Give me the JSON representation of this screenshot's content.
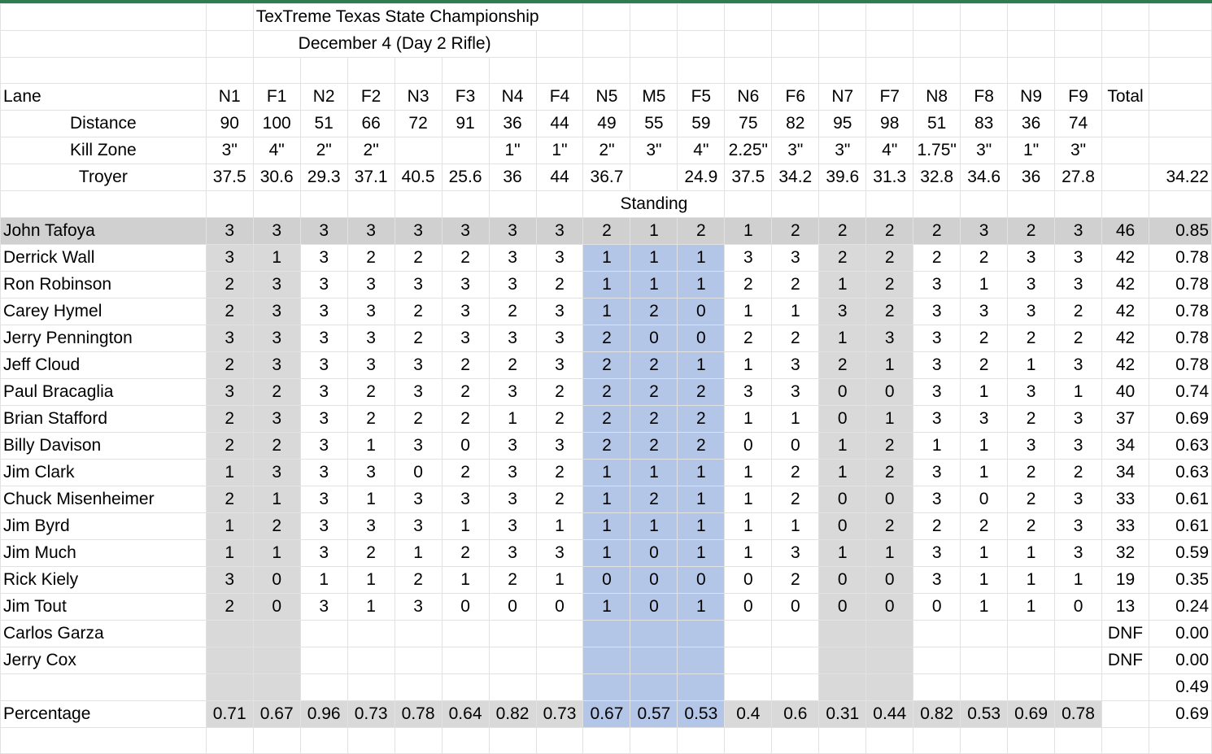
{
  "sheet": {
    "title": "TexTreme Texas State Championship",
    "subtitle": "December 4 (Day 2 Rifle)",
    "standing_label": "Standing",
    "header_row": {
      "label": "Lane",
      "lanes": [
        "N1",
        "F1",
        "N2",
        "F2",
        "N3",
        "F3",
        "N4",
        "F4",
        "N5",
        "M5",
        "F5",
        "N6",
        "F6",
        "N7",
        "F7",
        "N8",
        "F8",
        "N9",
        "F9"
      ],
      "total": "Total"
    },
    "distance_row": {
      "label": "Distance",
      "values": [
        "90",
        "100",
        "51",
        "66",
        "72",
        "91",
        "36",
        "44",
        "49",
        "55",
        "59",
        "75",
        "82",
        "95",
        "98",
        "51",
        "83",
        "36",
        "74"
      ]
    },
    "killzone_row": {
      "label": "Kill Zone",
      "values": [
        "3\"",
        "4\"",
        "2\"",
        "2\"",
        "",
        "",
        "1\"",
        "1\"",
        "2\"",
        "3\"",
        "4\"",
        "2.25\"",
        "3\"",
        "3\"",
        "4\"",
        "1.75\"",
        "3\"",
        "1\"",
        "3\""
      ]
    },
    "troyer_row": {
      "label": "Troyer",
      "values": [
        "37.5",
        "30.6",
        "29.3",
        "37.1",
        "40.5",
        "25.6",
        "36",
        "44",
        "36.7",
        "",
        "24.9",
        "37.5",
        "34.2",
        "39.6",
        "31.3",
        "32.8",
        "34.6",
        "36",
        "27.8"
      ],
      "pct": "34.22"
    },
    "shooters": [
      {
        "name": "John Tafoya",
        "scores": [
          "3",
          "3",
          "3",
          "3",
          "3",
          "3",
          "3",
          "3",
          "2",
          "1",
          "2",
          "1",
          "2",
          "2",
          "2",
          "2",
          "3",
          "2",
          "3"
        ],
        "total": "46",
        "pct": "0.85"
      },
      {
        "name": "Derrick Wall",
        "scores": [
          "3",
          "1",
          "3",
          "2",
          "2",
          "2",
          "3",
          "3",
          "1",
          "1",
          "1",
          "3",
          "3",
          "2",
          "2",
          "2",
          "2",
          "3",
          "3"
        ],
        "total": "42",
        "pct": "0.78"
      },
      {
        "name": "Ron Robinson",
        "scores": [
          "2",
          "3",
          "3",
          "3",
          "3",
          "3",
          "3",
          "2",
          "1",
          "1",
          "1",
          "2",
          "2",
          "1",
          "2",
          "3",
          "1",
          "3",
          "3"
        ],
        "total": "42",
        "pct": "0.78"
      },
      {
        "name": "Carey Hymel",
        "scores": [
          "2",
          "3",
          "3",
          "3",
          "2",
          "3",
          "2",
          "3",
          "1",
          "2",
          "0",
          "1",
          "1",
          "3",
          "2",
          "3",
          "3",
          "3",
          "2"
        ],
        "total": "42",
        "pct": "0.78"
      },
      {
        "name": "Jerry Pennington",
        "scores": [
          "3",
          "3",
          "3",
          "3",
          "2",
          "3",
          "3",
          "3",
          "2",
          "0",
          "0",
          "2",
          "2",
          "1",
          "3",
          "3",
          "2",
          "2",
          "2"
        ],
        "total": "42",
        "pct": "0.78"
      },
      {
        "name": "Jeff Cloud",
        "scores": [
          "2",
          "3",
          "3",
          "3",
          "3",
          "2",
          "2",
          "3",
          "2",
          "2",
          "1",
          "1",
          "3",
          "2",
          "1",
          "3",
          "2",
          "1",
          "3"
        ],
        "total": "42",
        "pct": "0.78"
      },
      {
        "name": "Paul Bracaglia",
        "scores": [
          "3",
          "2",
          "3",
          "2",
          "3",
          "2",
          "3",
          "2",
          "2",
          "2",
          "2",
          "3",
          "3",
          "0",
          "0",
          "3",
          "1",
          "3",
          "1"
        ],
        "total": "40",
        "pct": "0.74"
      },
      {
        "name": "Brian Stafford",
        "scores": [
          "2",
          "3",
          "3",
          "2",
          "2",
          "2",
          "1",
          "2",
          "2",
          "2",
          "2",
          "1",
          "1",
          "0",
          "1",
          "3",
          "3",
          "2",
          "3"
        ],
        "total": "37",
        "pct": "0.69"
      },
      {
        "name": "Billy Davison",
        "scores": [
          "2",
          "2",
          "3",
          "1",
          "3",
          "0",
          "3",
          "3",
          "2",
          "2",
          "2",
          "0",
          "0",
          "1",
          "2",
          "1",
          "1",
          "3",
          "3"
        ],
        "total": "34",
        "pct": "0.63"
      },
      {
        "name": "Jim Clark",
        "scores": [
          "1",
          "3",
          "3",
          "3",
          "0",
          "2",
          "3",
          "2",
          "1",
          "1",
          "1",
          "1",
          "2",
          "1",
          "2",
          "3",
          "1",
          "2",
          "2"
        ],
        "total": "34",
        "pct": "0.63"
      },
      {
        "name": "Chuck Misenheimer",
        "scores": [
          "2",
          "1",
          "3",
          "1",
          "3",
          "3",
          "3",
          "2",
          "1",
          "2",
          "1",
          "1",
          "2",
          "0",
          "0",
          "3",
          "0",
          "2",
          "3"
        ],
        "total": "33",
        "pct": "0.61"
      },
      {
        "name": "Jim Byrd",
        "scores": [
          "1",
          "2",
          "3",
          "3",
          "3",
          "1",
          "3",
          "1",
          "1",
          "1",
          "1",
          "1",
          "1",
          "0",
          "2",
          "2",
          "2",
          "2",
          "3"
        ],
        "total": "33",
        "pct": "0.61"
      },
      {
        "name": "Jim Much",
        "scores": [
          "1",
          "1",
          "3",
          "2",
          "1",
          "2",
          "3",
          "3",
          "1",
          "0",
          "1",
          "1",
          "3",
          "1",
          "1",
          "3",
          "1",
          "1",
          "3"
        ],
        "total": "32",
        "pct": "0.59"
      },
      {
        "name": "Rick Kiely",
        "scores": [
          "3",
          "0",
          "1",
          "1",
          "2",
          "1",
          "2",
          "1",
          "0",
          "0",
          "0",
          "0",
          "2",
          "0",
          "0",
          "3",
          "1",
          "1",
          "1"
        ],
        "total": "19",
        "pct": "0.35"
      },
      {
        "name": "Jim Tout",
        "scores": [
          "2",
          "0",
          "3",
          "1",
          "3",
          "0",
          "0",
          "0",
          "1",
          "0",
          "1",
          "0",
          "0",
          "0",
          "0",
          "0",
          "1",
          "1",
          "0"
        ],
        "total": "13",
        "pct": "0.24"
      },
      {
        "name": "Carlos Garza",
        "scores": [
          "",
          "",
          "",
          "",
          "",
          "",
          "",
          "",
          "",
          "",
          "",
          "",
          "",
          "",
          "",
          "",
          "",
          "",
          ""
        ],
        "total": "DNF",
        "pct": "0.00"
      },
      {
        "name": "Jerry Cox",
        "scores": [
          "",
          "",
          "",
          "",
          "",
          "",
          "",
          "",
          "",
          "",
          "",
          "",
          "",
          "",
          "",
          "",
          "",
          "",
          ""
        ],
        "total": "DNF",
        "pct": "0.00"
      }
    ],
    "avg_pct": "0.49",
    "percentage_row": {
      "label": "Percentage",
      "values": [
        "0.71",
        "0.67",
        "0.96",
        "0.73",
        "0.78",
        "0.64",
        "0.82",
        "0.73",
        "0.67",
        "0.57",
        "0.53",
        "0.4",
        "0.6",
        "0.31",
        "0.44",
        "0.82",
        "0.53",
        "0.69",
        "0.78"
      ],
      "pct": "0.69"
    },
    "colors": {
      "gray_band": "#d9d9d9",
      "blue_band": "#b4c6e7",
      "green_border": "#2e7d4f"
    }
  }
}
